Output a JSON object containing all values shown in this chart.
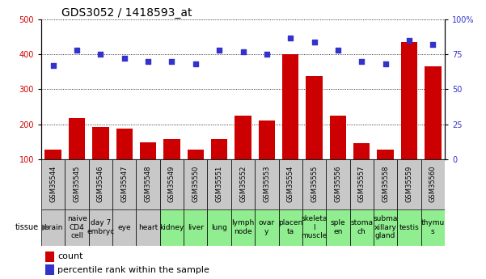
{
  "title": "GDS3052 / 1418593_at",
  "gsm_labels": [
    "GSM35544",
    "GSM35545",
    "GSM35546",
    "GSM35547",
    "GSM35548",
    "GSM35549",
    "GSM35550",
    "GSM35551",
    "GSM35552",
    "GSM35553",
    "GSM35554",
    "GSM35555",
    "GSM35556",
    "GSM35557",
    "GSM35558",
    "GSM35559",
    "GSM35560"
  ],
  "tissue_labels": [
    "brain",
    "naive\nCD4\ncell",
    "day 7\nembryc",
    "eye",
    "heart",
    "kidney",
    "liver",
    "lung",
    "lymph\nnode",
    "ovar\ny",
    "placen\nta",
    "skeleta\nl\nmuscle",
    "sple\nen",
    "stoma\nch",
    "subma\nxillary\ngland",
    "testis",
    "thymu\ns"
  ],
  "tissue_colors": [
    "#c8c8c8",
    "#c8c8c8",
    "#c8c8c8",
    "#c8c8c8",
    "#c8c8c8",
    "#90ee90",
    "#90ee90",
    "#90ee90",
    "#90ee90",
    "#90ee90",
    "#90ee90",
    "#90ee90",
    "#90ee90",
    "#90ee90",
    "#90ee90",
    "#90ee90",
    "#90ee90"
  ],
  "count_values": [
    128,
    218,
    193,
    187,
    148,
    158,
    128,
    157,
    225,
    210,
    400,
    338,
    225,
    145,
    128,
    435,
    365
  ],
  "percentile_values": [
    67,
    78,
    75,
    72,
    70,
    70,
    68,
    78,
    77,
    75,
    87,
    84,
    78,
    70,
    68,
    85,
    82
  ],
  "bar_color": "#cc0000",
  "dot_color": "#3333cc",
  "left_ylim": [
    100,
    500
  ],
  "left_yticks": [
    100,
    200,
    300,
    400,
    500
  ],
  "right_ylim": [
    0,
    100
  ],
  "right_yticks": [
    0,
    25,
    50,
    75,
    100
  ],
  "left_tick_color": "#cc0000",
  "right_tick_color": "#3333cc",
  "gsm_box_color": "#c8c8c8",
  "title_fontsize": 10,
  "tick_fontsize": 7,
  "gsm_fontsize": 6,
  "tissue_fontsize": 6.5,
  "legend_fontsize": 8
}
